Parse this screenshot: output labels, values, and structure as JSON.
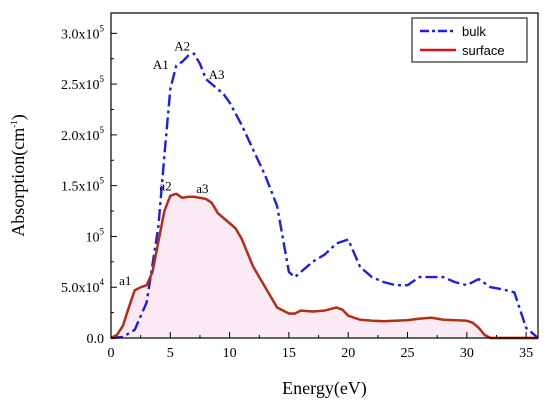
{
  "chart_data": {
    "type": "line",
    "xlabel": "Energy(eV)",
    "ylabel": "Absorption(cm",
    "ylabel_sup": "-1",
    "ylabel_close": ")",
    "xlim": [
      0,
      36
    ],
    "ylim": [
      0,
      320000
    ],
    "x_ticks": [
      0,
      5,
      10,
      15,
      20,
      25,
      30,
      35
    ],
    "y_ticks": [
      {
        "value": 0,
        "label": "0.0",
        "sup": ""
      },
      {
        "value": 50000,
        "label": "5.0x10",
        "sup": "4"
      },
      {
        "value": 100000,
        "label": "10",
        "sup": "5"
      },
      {
        "value": 150000,
        "label": "1.5x10",
        "sup": "5"
      },
      {
        "value": 200000,
        "label": "2.0x10",
        "sup": "5"
      },
      {
        "value": 250000,
        "label": "2.5x10",
        "sup": "5"
      },
      {
        "value": 300000,
        "label": "3.0x10",
        "sup": "5"
      }
    ],
    "legend_position": "top-right",
    "series": [
      {
        "name": "bulk",
        "color": "#1f1fe0",
        "style": "dash-dot",
        "x": [
          0,
          1,
          2,
          3,
          4,
          4.5,
          5,
          5.5,
          6,
          6.5,
          7,
          7.5,
          8,
          8.5,
          9,
          9.5,
          10,
          11,
          12,
          13,
          14,
          15,
          15.5,
          16,
          17,
          18,
          19,
          20,
          21,
          22,
          23,
          24,
          25,
          26,
          27,
          28,
          29,
          30,
          31,
          32,
          33,
          34,
          35,
          36
        ],
        "y": [
          0,
          1000,
          8000,
          35000,
          110000,
          180000,
          245000,
          268000,
          272000,
          278000,
          280000,
          270000,
          255000,
          250000,
          245000,
          240000,
          232000,
          210000,
          185000,
          160000,
          130000,
          65000,
          60000,
          65000,
          75000,
          82000,
          93000,
          97000,
          70000,
          60000,
          55000,
          52000,
          52000,
          60000,
          60000,
          60000,
          55000,
          52000,
          58000,
          50000,
          48000,
          45000,
          10000,
          0
        ]
      },
      {
        "name": "surface",
        "color": "#dd1111",
        "style": "solid",
        "x": [
          0,
          0.5,
          1,
          1.5,
          2,
          2.5,
          3,
          3.5,
          4,
          4.5,
          5,
          5.5,
          6,
          6.5,
          7,
          7.5,
          8,
          8.5,
          9,
          9.5,
          10,
          10.5,
          11,
          12,
          13,
          14,
          15,
          15.5,
          16,
          17,
          18,
          19,
          19.5,
          20,
          21,
          22,
          23,
          24,
          25,
          26,
          27,
          28,
          29,
          30,
          30.5,
          31,
          31.5,
          32,
          33,
          34,
          35,
          36
        ],
        "y": [
          0,
          3000,
          12000,
          30000,
          47000,
          50000,
          52000,
          65000,
          95000,
          125000,
          140000,
          142000,
          138000,
          139000,
          139000,
          138000,
          137000,
          133000,
          123000,
          118000,
          113000,
          108000,
          98000,
          70000,
          50000,
          30000,
          24000,
          24000,
          27000,
          26000,
          27000,
          30000,
          28000,
          22000,
          18000,
          17000,
          16500,
          17000,
          17500,
          19000,
          20000,
          18000,
          17500,
          17000,
          15000,
          10000,
          3000,
          0,
          0,
          0,
          0,
          0
        ]
      }
    ],
    "annotations": [
      {
        "text": "A1",
        "x": 4.2,
        "y": 265000
      },
      {
        "text": "A2",
        "x": 6.0,
        "y": 283000
      },
      {
        "text": "A3",
        "x": 8.9,
        "y": 255000
      },
      {
        "text": "a1",
        "x": 1.2,
        "y": 52000
      },
      {
        "text": "a2",
        "x": 4.6,
        "y": 145000
      },
      {
        "text": "a3",
        "x": 7.7,
        "y": 143000
      }
    ]
  }
}
